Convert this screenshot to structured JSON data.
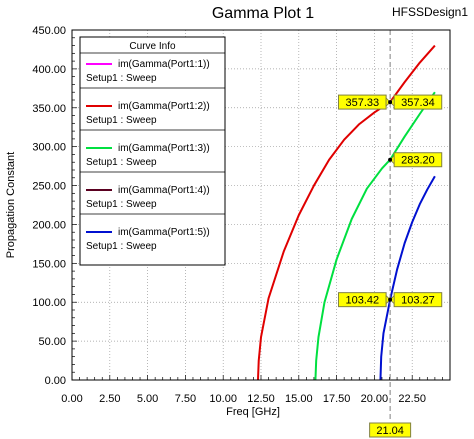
{
  "chart_data": {
    "type": "line",
    "title": "Gamma Plot 1",
    "design_name": "HFSSDesign1",
    "xlabel": "Freq [GHz]",
    "ylabel": "Propagation Constant",
    "xlim": [
      0,
      25
    ],
    "ylim": [
      0,
      450
    ],
    "x_ticks": [
      "0.00",
      "2.50",
      "5.00",
      "7.50",
      "10.00",
      "12.50",
      "15.00",
      "17.50",
      "20.00",
      "22.50"
    ],
    "y_ticks": [
      "0.00",
      "50.00",
      "100.00",
      "150.00",
      "200.00",
      "250.00",
      "300.00",
      "350.00",
      "400.00",
      "450.00"
    ],
    "grid": true,
    "legend_title": "Curve Info",
    "legend_position": "top-left",
    "series": [
      {
        "name": "im(Gamma(Port1:1))",
        "sub": "Setup1 : Sweep",
        "color": "#ff00ff",
        "x": [],
        "y": []
      },
      {
        "name": "im(Gamma(Port1:2))",
        "sub": "Setup1 : Sweep",
        "color": "#e00000",
        "x": [
          12.3,
          12.35,
          12.5,
          13.0,
          14.0,
          15.0,
          16.0,
          17.0,
          18.0,
          19.0,
          20.0,
          21.04,
          22.0,
          23.0,
          24.0
        ],
        "y": [
          0,
          25,
          55,
          105,
          165,
          212,
          250,
          283,
          309,
          329,
          344,
          357.33,
          383,
          408,
          430
        ]
      },
      {
        "name": "im(Gamma(Port1:3))",
        "sub": "Setup1 : Sweep",
        "color": "#00e040",
        "x": [
          16.1,
          16.15,
          16.3,
          16.7,
          17.5,
          18.5,
          19.5,
          20.5,
          21.04,
          22.0,
          23.0,
          24.0
        ],
        "y": [
          0,
          25,
          55,
          100,
          155,
          207,
          246,
          272,
          283.2,
          313,
          342,
          370
        ]
      },
      {
        "name": "im(Gamma(Port1:4))",
        "sub": "Setup1 : Sweep",
        "color": "#5a0020",
        "x": [],
        "y": []
      },
      {
        "name": "im(Gamma(Port1:5))",
        "sub": "Setup1 : Sweep",
        "color": "#0010d0",
        "x": [
          20.4,
          20.45,
          20.6,
          21.04,
          21.5,
          22.0,
          22.5,
          23.0,
          23.5,
          24.0
        ],
        "y": [
          0,
          30,
          60,
          103.3,
          142,
          176,
          203,
          226,
          245,
          262
        ]
      }
    ],
    "markers": {
      "x_value": 21.04,
      "x_label": "21.04",
      "points": [
        {
          "series": 1,
          "y": 357.33,
          "left": "357.33",
          "right": "357.34"
        },
        {
          "series": 2,
          "y": 283.2,
          "left": "",
          "right": "283.20"
        },
        {
          "series": 4,
          "y": 103.3,
          "left": "103.42",
          "right": "103.27"
        }
      ]
    }
  }
}
